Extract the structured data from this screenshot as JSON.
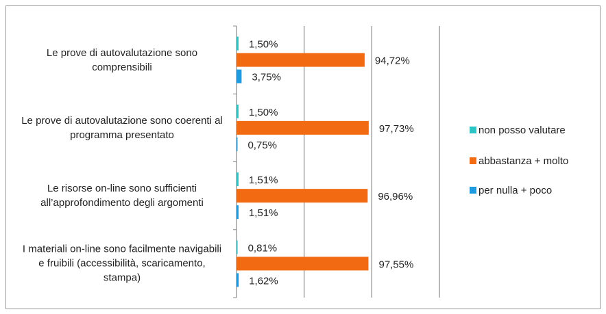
{
  "chart_data": {
    "type": "bar",
    "orientation": "horizontal",
    "categories": [
      "Le prove di autovalutazione sono comprensibili",
      "Le prove di autovalutazione sono coerenti al programma presentato",
      "Le risorse on-line sono sufficienti all’approfondimento degli argomenti",
      "I materiali on-line sono facilmente navigabili e fruibili (accessibilità, scaricamento, stampa)"
    ],
    "series": [
      {
        "name": "non posso valutare",
        "color": "#2ec4c4",
        "values": [
          1.5,
          1.5,
          1.51,
          0.81
        ],
        "value_labels": [
          "1,50%",
          "1,50%",
          "1,51%",
          "0,81%"
        ]
      },
      {
        "name": "abbastanza + molto",
        "color": "#f26b12",
        "values": [
          94.72,
          97.73,
          96.96,
          97.55
        ],
        "value_labels": [
          "94,72%",
          "97,73%",
          "96,96%",
          "97,55%"
        ]
      },
      {
        "name": "per nulla + poco",
        "color": "#1e9be0",
        "values": [
          3.75,
          0.75,
          1.51,
          1.62
        ],
        "value_labels": [
          "3,75%",
          "0,75%",
          "1,51%",
          "1,62%"
        ]
      }
    ],
    "xlim": [
      0,
      150
    ],
    "xticks": [
      0,
      50,
      100,
      150
    ],
    "grid": true,
    "legend": "right"
  }
}
